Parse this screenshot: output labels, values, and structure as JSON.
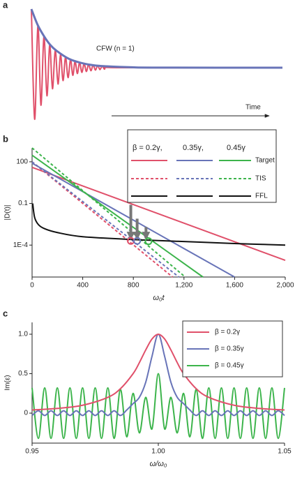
{
  "chart_data": [
    {
      "type": "line",
      "panel": "a",
      "annotation": "CFW (n = 1)",
      "arrow_label": "Time",
      "xlim": [
        0,
        1
      ],
      "ylim": [
        -1,
        1
      ],
      "series": [
        {
          "color": "#e0506a",
          "x": [
            0,
            0.013,
            0.026,
            0.038,
            0.05,
            0.062,
            0.073,
            0.084,
            0.095,
            0.106,
            0.116,
            0.126,
            0.136,
            0.146,
            0.156,
            0.165,
            0.174,
            0.183,
            0.192,
            0.201,
            0.21,
            0.219,
            0.228,
            0.237,
            0.246,
            0.255,
            0.264,
            0.273,
            0.282,
            0.291,
            0.3,
            0.35,
            1
          ],
          "values": [
            1,
            -0.88,
            0.72,
            -0.64,
            0.54,
            -0.48,
            0.4,
            -0.36,
            0.3,
            -0.28,
            0.23,
            -0.22,
            0.18,
            -0.17,
            0.14,
            -0.13,
            0.11,
            -0.1,
            0.09,
            -0.08,
            0.07,
            -0.065,
            0.058,
            -0.052,
            0.046,
            -0.041,
            0.037,
            -0.033,
            0.029,
            -0.026,
            0.024,
            0,
            0
          ]
        },
        {
          "color": "#6874b8",
          "x": [
            0,
            0.025,
            0.05,
            0.075,
            0.1,
            0.15,
            0.2,
            0.25,
            0.3,
            0.4,
            0.5,
            1
          ],
          "values": [
            1,
            0.73,
            0.54,
            0.39,
            0.29,
            0.15,
            0.08,
            0.04,
            0.024,
            0.007,
            0.002,
            0
          ]
        }
      ]
    },
    {
      "type": "line",
      "panel": "b",
      "xlabel": "ω₀t",
      "ylabel": "|D(t)|",
      "log_y": true,
      "xlim": [
        0,
        2000
      ],
      "ylim": [
        5e-07,
        1000
      ],
      "xticks": [
        0,
        400,
        800,
        {
          "value": 1200,
          "label": "1,200"
        },
        {
          "value": 1600,
          "label": "1,600"
        },
        {
          "value": 2000,
          "label": "2,000"
        }
      ],
      "yticks": [
        100,
        0.1,
        {
          "value": 0.0001,
          "label": "1E-4"
        }
      ],
      "legend": {
        "columns": [
          "β = 0.2γ,",
          "0.35γ,",
          "0.45γ"
        ]
      },
      "series": [
        {
          "name": "Target",
          "style": "solid",
          "lines": [
            {
              "color": "#e0506a",
              "x": [
                0,
                2000
              ],
              "values": [
                40,
                8e-06
              ]
            },
            {
              "color": "#6874b8",
              "x": [
                0,
                1600
              ],
              "values": [
                80,
                5e-07
              ]
            },
            {
              "color": "#3cb44b",
              "x": [
                0,
                1350
              ],
              "values": [
                300,
                5e-07
              ]
            }
          ]
        },
        {
          "name": "TIS",
          "style": "dashed",
          "lines": [
            {
              "color": "#e0506a",
              "x": [
                0,
                1110
              ],
              "values": [
                100,
                5e-07
              ]
            },
            {
              "color": "#6874b8",
              "x": [
                0,
                1160
              ],
              "values": [
                100,
                5e-07
              ]
            },
            {
              "color": "#3cb44b",
              "x": [
                0,
                1210
              ],
              "values": [
                1000,
                5e-07
              ]
            }
          ]
        },
        {
          "name": "FFL",
          "style": "solid",
          "lines": [
            {
              "color": "#111111",
              "x": [
                5,
                20,
                50,
                100,
                200,
                400,
                800,
                1200,
                1600,
                2000
              ],
              "values": [
                0.1,
                0.01,
                0.003,
                0.0015,
                0.0008,
                0.0004,
                0.00025,
                0.00018,
                0.00013,
                0.0001
              ]
            }
          ]
        }
      ],
      "arrows": [
        {
          "x": 780,
          "from": 0.08,
          "to": 0.0003
        },
        {
          "x": 830,
          "from": 0.008,
          "to": 0.0003
        },
        {
          "x": 900,
          "from": 0.002,
          "to": 0.0003
        }
      ],
      "points": [
        {
          "x": 780,
          "y": 0.0002,
          "color": "#e0506a"
        },
        {
          "x": 830,
          "y": 0.0002,
          "color": "#6874b8"
        },
        {
          "x": 920,
          "y": 0.00019,
          "color": "#3cb44b"
        }
      ]
    },
    {
      "type": "line",
      "panel": "c",
      "xlabel": "ω/ω₀",
      "ylabel": "Im(ε)",
      "xlim": [
        0.95,
        1.05
      ],
      "ylim": [
        -0.38,
        1.15
      ],
      "xticks": [
        0.95,
        {
          "value": 1,
          "label": "1.00"
        },
        1.05
      ],
      "yticks": [
        0,
        0.5,
        {
          "value": 1,
          "label": "1.0"
        }
      ],
      "series": [
        {
          "name": "β = 0.2γ",
          "color": "#e0506a",
          "x": [
            0.95,
            0.96,
            0.97,
            0.98,
            0.985,
            0.99,
            0.9925,
            0.995,
            0.9975,
            1,
            1.0025,
            1.005,
            1.0075,
            1.01,
            1.015,
            1.02,
            1.03,
            1.04,
            1.05
          ],
          "values": [
            0.04,
            0.06,
            0.1,
            0.2,
            0.31,
            0.5,
            0.64,
            0.8,
            0.94,
            1,
            0.94,
            0.8,
            0.64,
            0.5,
            0.31,
            0.2,
            0.1,
            0.06,
            0.04
          ]
        },
        {
          "name": "β = 0.35γ",
          "color": "#6874b8",
          "x": [
            0.95,
            0.9525,
            0.955,
            0.9575,
            0.96,
            0.9625,
            0.965,
            0.9675,
            0.97,
            0.9725,
            0.975,
            0.9775,
            0.98,
            0.9825,
            0.985,
            0.9875,
            0.99,
            0.9925,
            0.995,
            0.9975,
            1,
            1.0025,
            1.005,
            1.0075,
            1.01,
            1.0125,
            1.015,
            1.0175,
            1.02,
            1.0225,
            1.025,
            1.0275,
            1.03,
            1.0325,
            1.035,
            1.0375,
            1.04,
            1.0425,
            1.045,
            1.0475,
            1.05
          ],
          "values": [
            -0.03,
            0.03,
            -0.03,
            0.03,
            -0.03,
            0.03,
            -0.03,
            0.03,
            -0.03,
            0.03,
            -0.03,
            0.03,
            -0.03,
            0.03,
            -0.03,
            0.04,
            0.12,
            0.2,
            0.39,
            0.72,
            1,
            0.72,
            0.39,
            0.2,
            0.12,
            0.04,
            -0.03,
            0.03,
            -0.03,
            0.03,
            -0.03,
            0.03,
            -0.03,
            0.03,
            -0.03,
            0.03,
            -0.03,
            0.03,
            -0.03,
            0.03,
            -0.03
          ]
        },
        {
          "name": "β = 0.45γ",
          "color": "#3cb44b",
          "x": [
            0.95,
            0.9525,
            0.955,
            0.9575,
            0.96,
            0.9625,
            0.965,
            0.9675,
            0.97,
            0.9725,
            0.975,
            0.9775,
            0.98,
            0.9825,
            0.985,
            0.9875,
            0.99,
            0.9925,
            0.995,
            0.9975,
            1,
            1.0025,
            1.005,
            1.0075,
            1.01,
            1.0125,
            1.015,
            1.0175,
            1.02,
            1.0225,
            1.025,
            1.0275,
            1.03,
            1.0325,
            1.035,
            1.0375,
            1.04,
            1.0425,
            1.045,
            1.0475,
            1.05
          ],
          "values": [
            0.32,
            -0.32,
            0.32,
            -0.32,
            0.32,
            -0.32,
            0.32,
            -0.32,
            0.32,
            -0.32,
            0.32,
            -0.32,
            0.32,
            -0.32,
            0.3,
            -0.3,
            0.25,
            -0.25,
            0.2,
            -0.2,
            0.5,
            -0.2,
            0.2,
            -0.25,
            0.25,
            -0.3,
            0.3,
            -0.32,
            0.32,
            -0.32,
            0.32,
            -0.32,
            0.32,
            -0.32,
            0.32,
            -0.32,
            0.32,
            -0.32,
            0.32,
            -0.32,
            0.32
          ]
        }
      ]
    }
  ]
}
